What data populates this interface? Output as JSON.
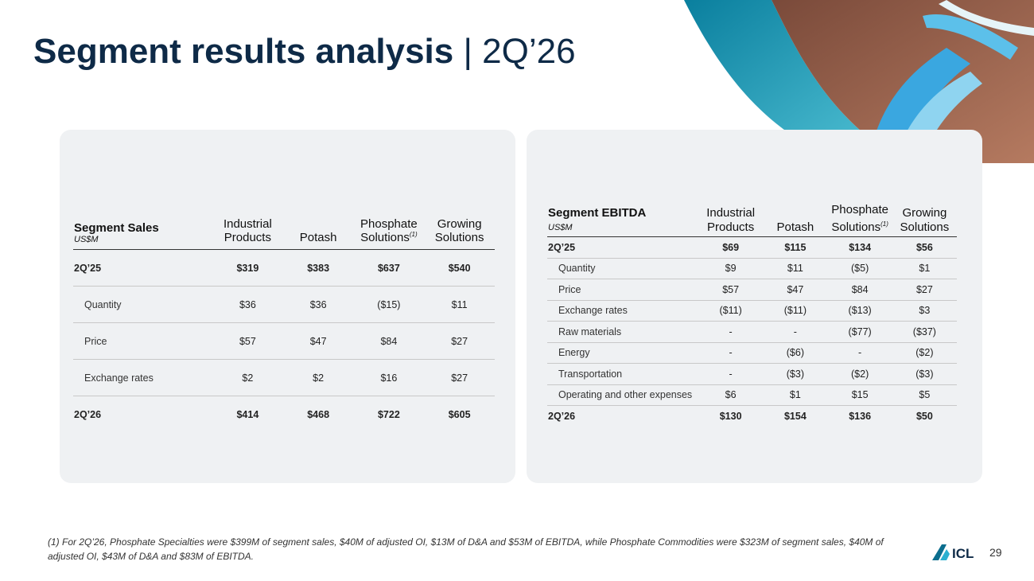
{
  "header": {
    "title": "Segment results analysis",
    "separator": "|",
    "period": "2Q’26"
  },
  "sales_table": {
    "title": "Segment Sales",
    "unit": "US$M",
    "columns": [
      "Industrial Products",
      "Potash",
      "Phosphate Solutions",
      "Growing Solutions"
    ],
    "column_note": "(1)",
    "rows": [
      [
        "2Q’25",
        "$319",
        "$383",
        "$637",
        "$540"
      ],
      [
        "Quantity",
        "$36",
        "$36",
        "($15)",
        "$11"
      ],
      [
        "Price",
        "$57",
        "$47",
        "$84",
        "$27"
      ],
      [
        "Exchange rates",
        "$2",
        "$2",
        "$16",
        "$27"
      ],
      [
        "2Q’26",
        "$414",
        "$468",
        "$722",
        "$605"
      ]
    ]
  },
  "ebitda_table": {
    "title": "Segment EBITDA",
    "unit": "US$M",
    "columns": [
      "Industrial Products",
      "Potash",
      "Phosphate Solutions",
      "Growing Solutions"
    ],
    "column_note": "(1)",
    "rows": [
      [
        "2Q’25",
        "$69",
        "$115",
        "$134",
        "$56"
      ],
      [
        "Quantity",
        "$9",
        "$11",
        "($5)",
        "$1"
      ],
      [
        "Price",
        "$57",
        "$47",
        "$84",
        "$27"
      ],
      [
        "Exchange rates",
        "($11)",
        "($11)",
        "($13)",
        "$3"
      ],
      [
        "Raw materials",
        "-",
        "-",
        "($77)",
        "($37)"
      ],
      [
        "Energy",
        "-",
        "($6)",
        "-",
        "($2)"
      ],
      [
        "Transportation",
        "-",
        "($3)",
        "($2)",
        "($3)"
      ],
      [
        "Operating and other expenses",
        "$6",
        "$1",
        "$15",
        "$5"
      ],
      [
        "2Q’26",
        "$130",
        "$154",
        "$136",
        "$50"
      ]
    ]
  },
  "footnote": "(1) For 2Q’26, Phosphate Specialties were $399M of segment sales, $40M of adjusted OI, $13M of D&A and $53M of EBITDA, while Phosphate Commodities were $323M of segment sales, $40M of adjusted OI, $43M of D&A and $83M of EBITDA.",
  "logo": "ICL",
  "page_number": "29"
}
